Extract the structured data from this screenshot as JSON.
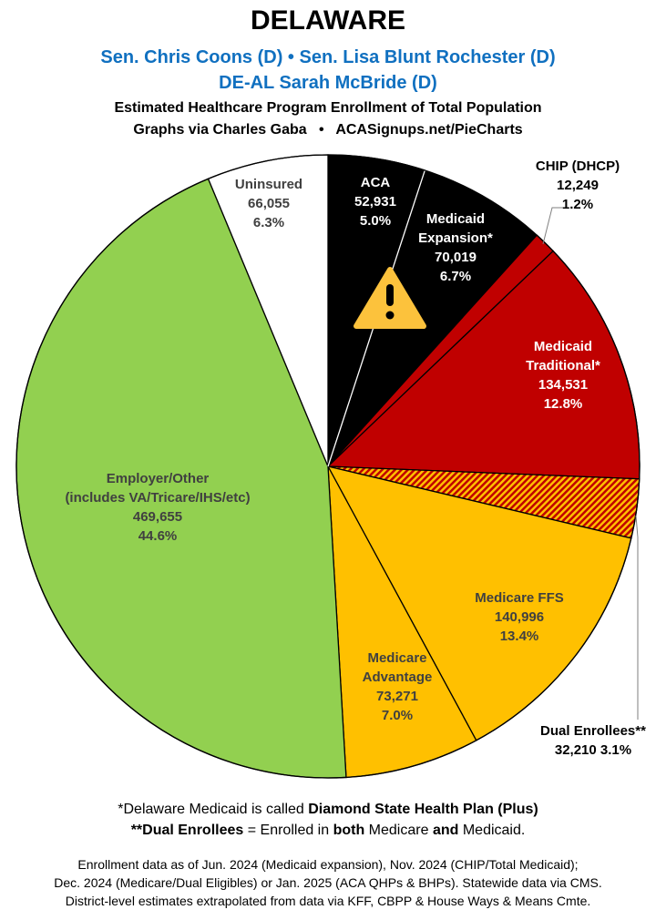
{
  "header": {
    "title": "DELAWARE",
    "senators": "Sen. Chris Coons (D) • Sen. Lisa Blunt Rochester (D)",
    "representative": "DE-AL Sarah McBride (D)",
    "subtitle": "Estimated Healthcare Program Enrollment of Total Population",
    "credit": "Graphs via Charles Gaba   •   ACASignups.net/PieCharts"
  },
  "chart_data": {
    "type": "pie",
    "start": "top, clockwise",
    "slices": [
      {
        "label": "ACA",
        "value": 52931,
        "percent": "5.0%",
        "color": "#000000",
        "text_color": "#ffffff"
      },
      {
        "label": "Medicaid Expansion*",
        "value": 70019,
        "percent": "6.7%",
        "color": "#000000",
        "text_color": "#ffffff",
        "icon": "warning-icon"
      },
      {
        "label": "CHIP (DHCP)",
        "value": 12249,
        "percent": "1.2%",
        "color": "#c00000",
        "text_color": "#000000"
      },
      {
        "label": "Medicaid Traditional*",
        "value": 134531,
        "percent": "12.8%",
        "color": "#c00000",
        "text_color": "#ffffff"
      },
      {
        "label": "Dual Enrollees**",
        "value": 32210,
        "percent": "3.1%",
        "color": "hatched #c00000/#ffc000",
        "text_color": "#000000"
      },
      {
        "label": "Medicare FFS",
        "value": 140996,
        "percent": "13.4%",
        "color": "#ffc000",
        "text_color": "#404040"
      },
      {
        "label": "Medicare Advantage",
        "value": 73271,
        "percent": "7.0%",
        "color": "#ffc000",
        "text_color": "#404040"
      },
      {
        "label": "Employer/Other (includes VA/Tricare/IHS/etc)",
        "value": 469655,
        "percent": "44.6%",
        "color": "#92d050",
        "text_color": "#404040"
      },
      {
        "label": "Uninsured",
        "value": 66055,
        "percent": "6.3%",
        "color": "#ffffff",
        "text_color": "#404040"
      }
    ],
    "display": {
      "aca": [
        "ACA",
        "52,931",
        "5.0%"
      ],
      "exp": [
        "Medicaid",
        "Expansion*",
        "70,019",
        "6.7%"
      ],
      "chip": [
        "CHIP (DHCP)",
        "12,249",
        "1.2%"
      ],
      "trad": [
        "Medicaid",
        "Traditional*",
        "134,531",
        "12.8%"
      ],
      "dual": [
        "Dual Enrollees**",
        "32,210 3.1%"
      ],
      "ffs": [
        "Medicare FFS",
        "140,996",
        "13.4%"
      ],
      "adv": [
        "Medicare",
        "Advantage",
        "73,271",
        "7.0%"
      ],
      "emp": [
        "Employer/Other",
        "(includes VA/Tricare/IHS/etc)",
        "469,655",
        "44.6%"
      ],
      "unins": [
        "Uninsured",
        "66,055",
        "6.3%"
      ]
    }
  },
  "footnotes": {
    "note1_pre": "*Delaware Medicaid is called ",
    "note1_bold": "Diamond State Health Plan (Plus)",
    "note2_bold1": "**Dual Enrollees",
    "note2_mid1": " = Enrolled in ",
    "note2_bold2": "both",
    "note2_mid2": " Medicare ",
    "note2_bold3": "and",
    "note2_end": " Medicaid.",
    "source1": "Enrollment data as of Jun. 2024 (Medicaid expansion), Nov. 2024 (CHIP/Total Medicaid);",
    "source2": "Dec. 2024 (Medicare/Dual Eligibles) or Jan. 2025 (ACA QHPs & BHPs). Statewide data via CMS.",
    "source3": "District-level estimates extrapolated from data via KFF, CBPP & House Ways & Means Cmte."
  }
}
